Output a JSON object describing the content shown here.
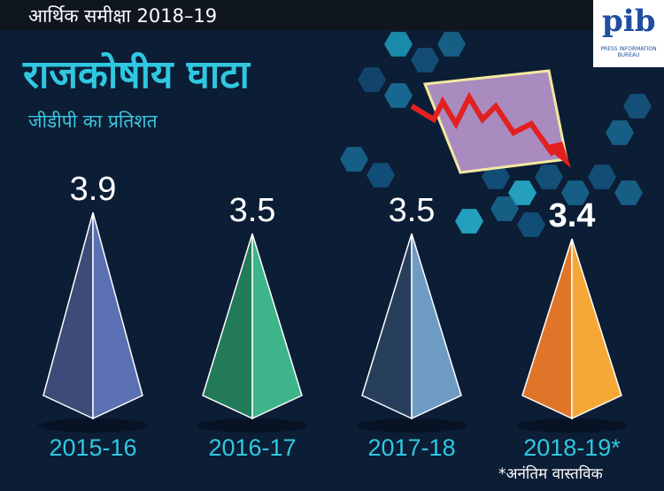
{
  "header": {
    "kicker": "आर्थिक समीक्षा 2018–19",
    "title": "राजकोषीय घाटा",
    "subtitle": "जीडीपी का प्रतिशत"
  },
  "logo": {
    "text": "PRESS INFORMATION BUREAU"
  },
  "footnote": "*अनंतिम वास्तविक",
  "chart_data": {
    "type": "bar",
    "title": "राजकोषीय घाटा",
    "ylabel": "जीडीपी का प्रतिशत",
    "categories": [
      "2015-16",
      "2016-17",
      "2017-18",
      "2018-19*"
    ],
    "values": [
      3.9,
      3.5,
      3.5,
      3.4
    ],
    "value_labels": [
      "3.9",
      "3.5",
      "3.5",
      "3.4"
    ],
    "colors": [
      [
        "#3e4a78",
        "#5a70b2"
      ],
      [
        "#227a58",
        "#3db48a"
      ],
      [
        "#283f5c",
        "#6e9bc4"
      ],
      [
        "#e0752a",
        "#f6a836"
      ]
    ],
    "label_color": "#2fc8e0"
  }
}
